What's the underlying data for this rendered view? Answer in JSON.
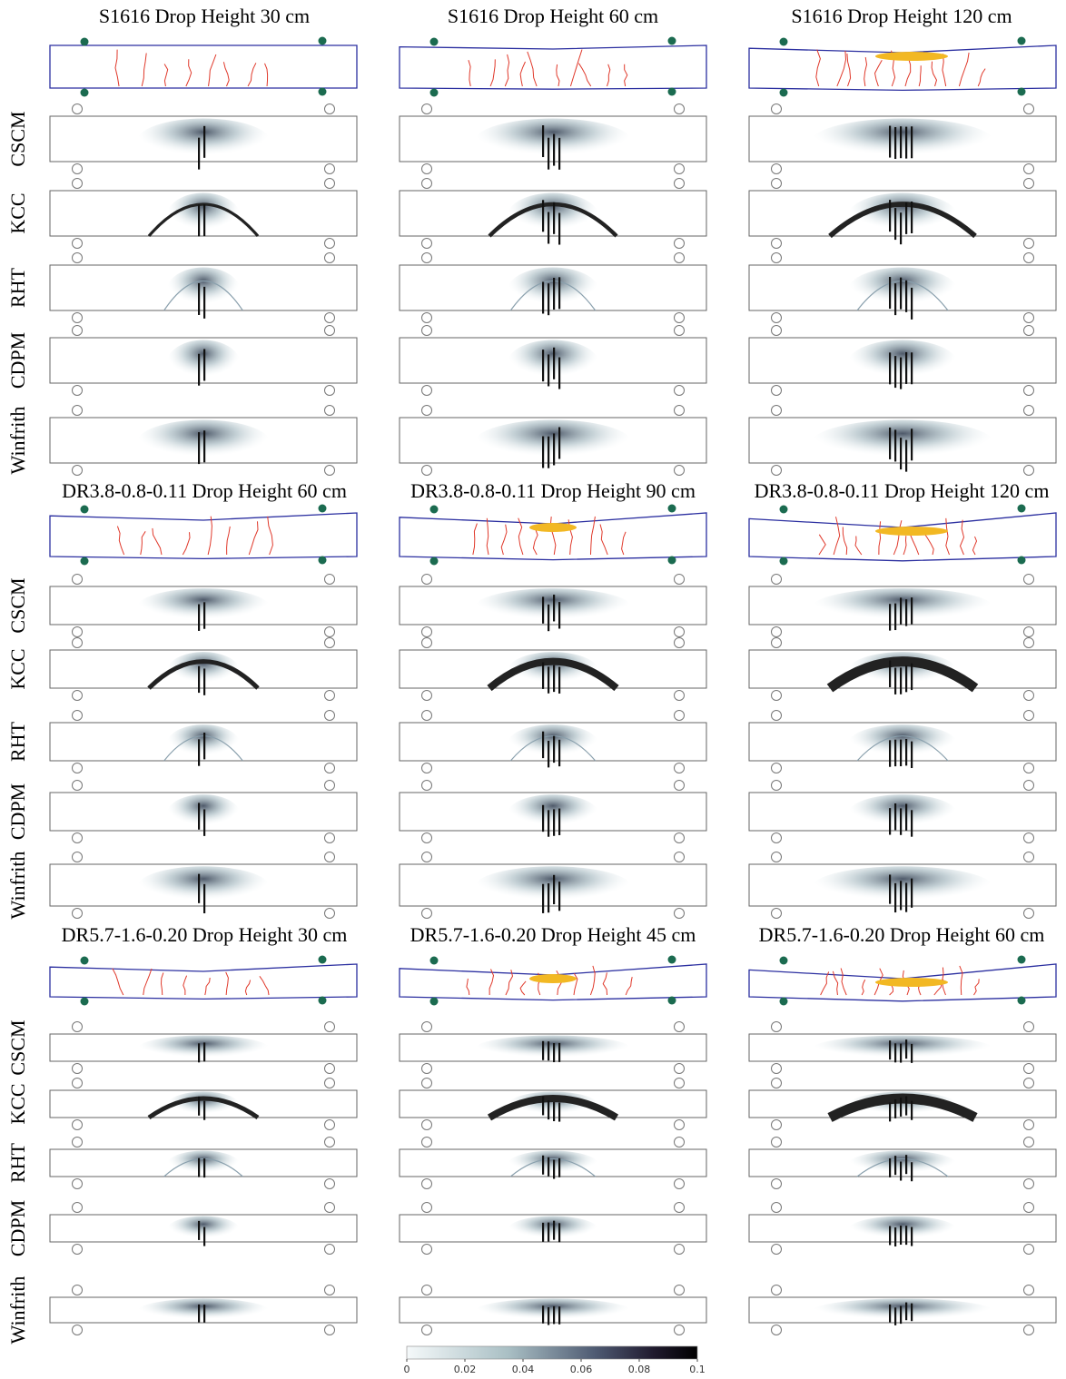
{
  "sections": [
    {
      "titles": [
        "S1616 Drop Height 30 cm",
        "S1616 Drop Height 60 cm",
        "S1616 Drop Height 120 cm"
      ]
    },
    {
      "titles": [
        "DR3.8-0.8-0.11 Drop Height 60 cm",
        "DR3.8-0.8-0.11 Drop Height 90 cm",
        "DR3.8-0.8-0.11 Drop Height 120 cm"
      ]
    },
    {
      "titles": [
        "DR5.7-1.6-0.20 Drop Height 30 cm",
        "DR5.7-1.6-0.20 Drop Height 45 cm",
        "DR5.7-1.6-0.20 Drop Height 60 cm"
      ]
    }
  ],
  "row_labels": [
    "CSCM",
    "KCC",
    "RHT",
    "CDPM",
    "Winfrith"
  ],
  "colorbar": {
    "range": [
      0,
      0.1
    ],
    "ticks": [
      0,
      0.02,
      0.04,
      0.06,
      0.08,
      0.1
    ]
  }
}
